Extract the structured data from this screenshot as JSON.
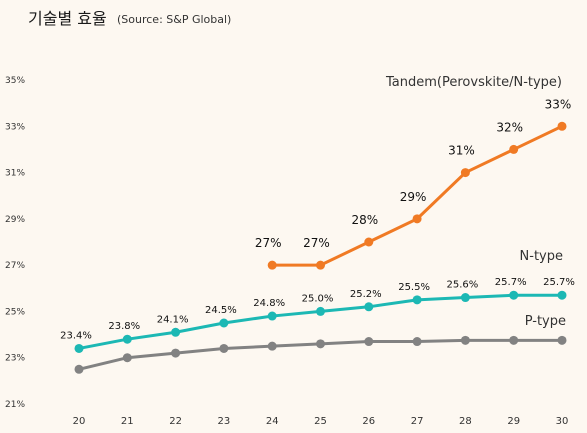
{
  "chart_data": {
    "type": "line",
    "title": "기술별 효율",
    "subtitle": "(Source: S&P Global)",
    "x": [
      "20",
      "21",
      "22",
      "23",
      "24",
      "25",
      "26",
      "27",
      "28",
      "29",
      "30"
    ],
    "y_ticks": [
      "21%",
      "23%",
      "25%",
      "27%",
      "29%",
      "31%",
      "33%",
      "35%"
    ],
    "ylim": [
      21,
      35
    ],
    "grid": false,
    "series": [
      {
        "name": "Tandem(Perovskite/N-type)",
        "color": "#f07a24",
        "values": [
          null,
          null,
          null,
          null,
          27,
          27,
          28,
          29,
          31,
          32,
          33
        ],
        "labels": [
          null,
          null,
          null,
          null,
          "27%",
          "27%",
          "28%",
          "29%",
          "31%",
          "32%",
          "33%"
        ]
      },
      {
        "name": "N-type",
        "color": "#1cb8b4",
        "values": [
          23.4,
          23.8,
          24.1,
          24.5,
          24.8,
          25.0,
          25.2,
          25.5,
          25.6,
          25.7,
          25.7
        ],
        "labels": [
          "23.4%",
          "23.8%",
          "24.1%",
          "24.5%",
          "24.8%",
          "25.0%",
          "25.2%",
          "25.5%",
          "25.6%",
          "25.7%",
          "25.7%"
        ]
      },
      {
        "name": "P-type",
        "color": "#828282",
        "values": [
          22.5,
          23.0,
          23.2,
          23.4,
          23.5,
          23.6,
          23.7,
          23.7,
          23.75,
          23.75,
          23.75
        ],
        "labels": []
      }
    ]
  }
}
